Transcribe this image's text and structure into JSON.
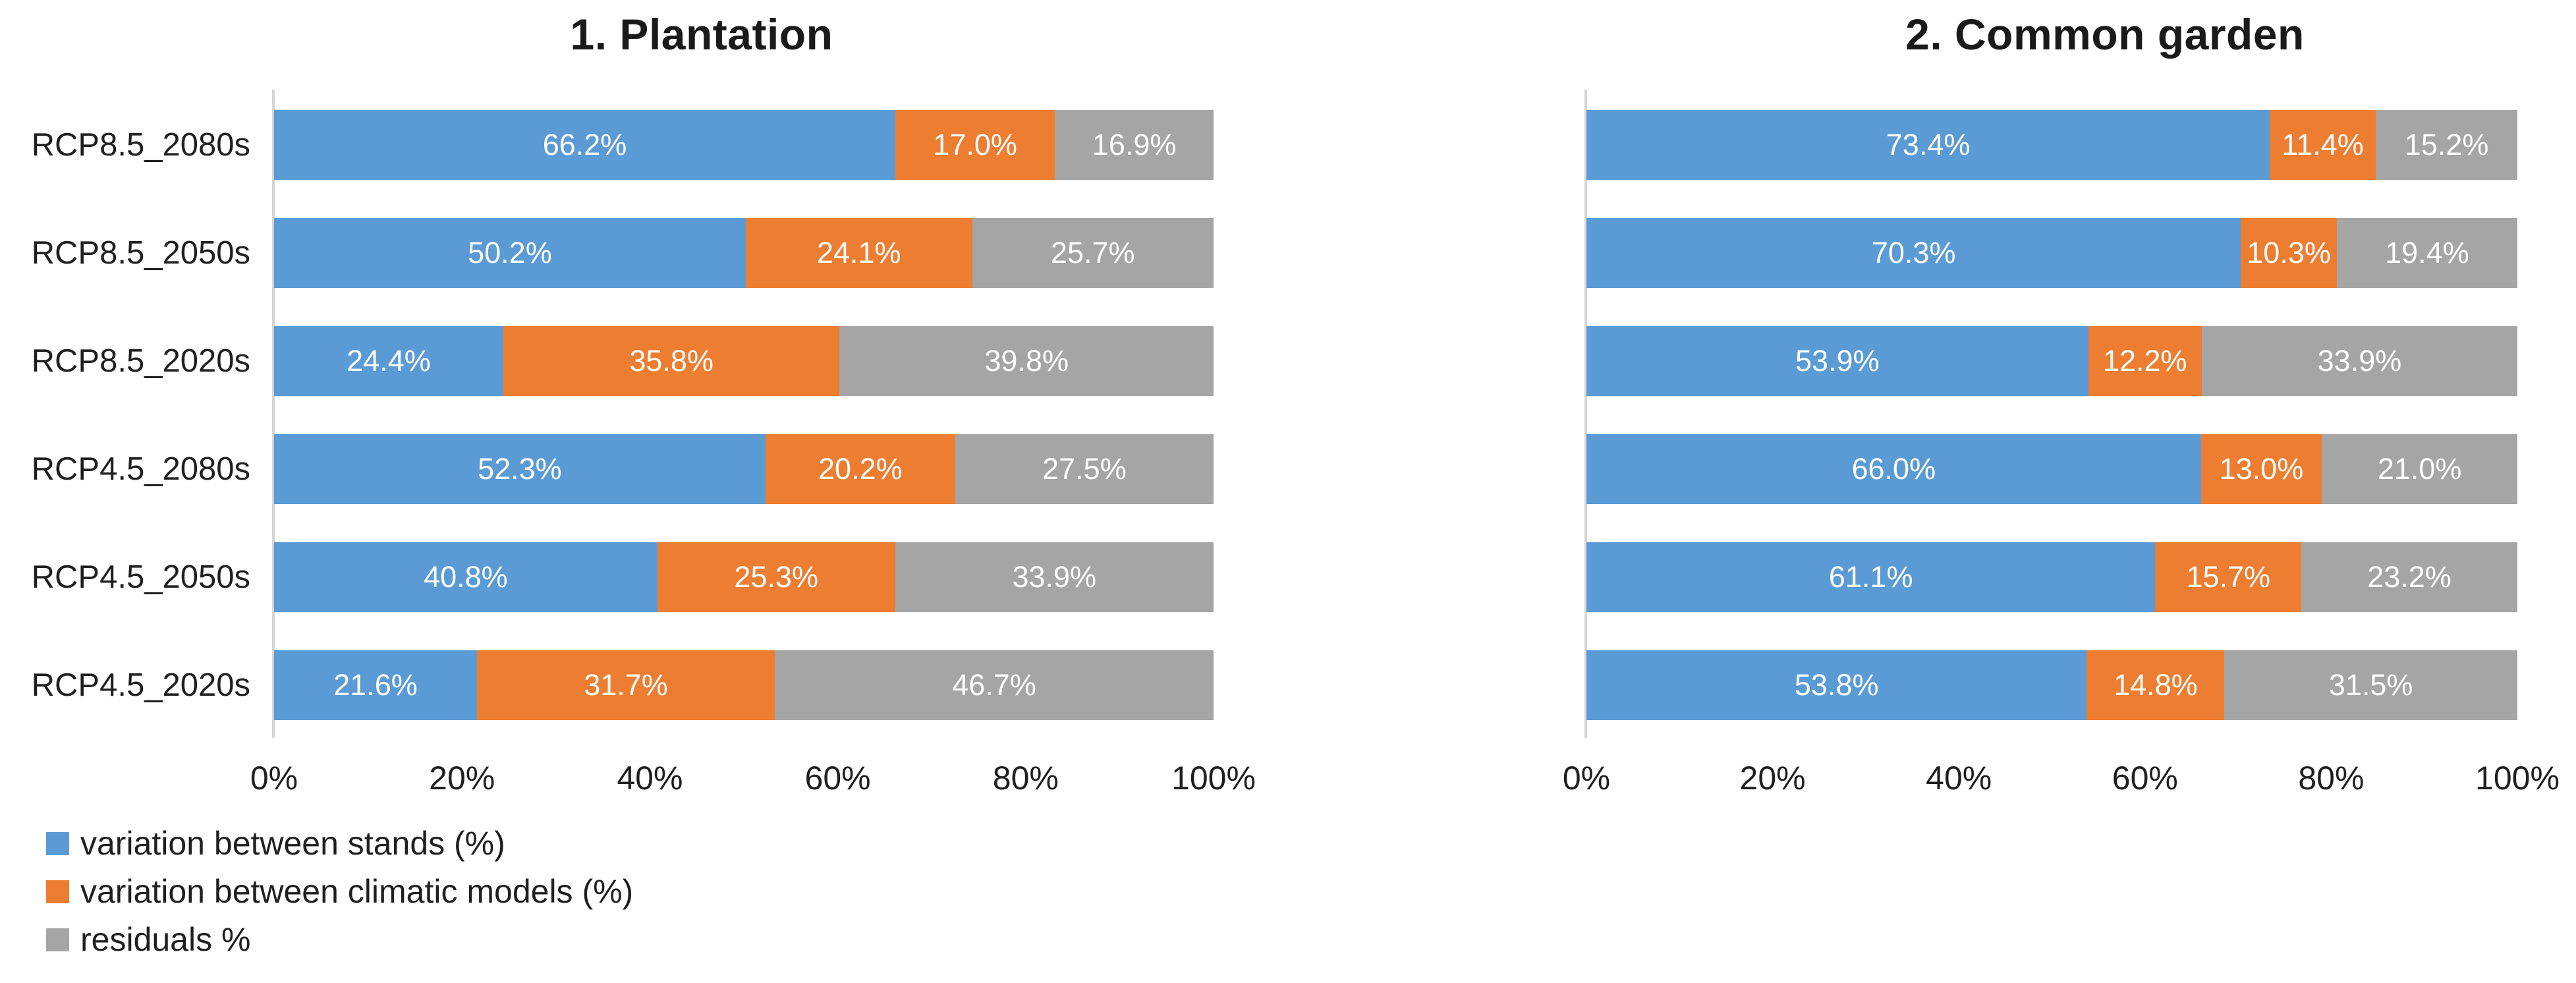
{
  "figure": {
    "legend": {
      "position": "bottom-left",
      "items": [
        {
          "label": "variation between stands (%)",
          "color": "#5B9BD5"
        },
        {
          "label": "variation between climatic models (%)",
          "color": "#ED7D31"
        },
        {
          "label": "residuals %",
          "color": "#A5A5A5"
        }
      ]
    },
    "colors": {
      "series_blue": "#5B9BD5",
      "series_orange": "#ED7D31",
      "series_gray": "#A5A5A5",
      "axis_line": "#D6D6D6",
      "text": "#1F1F1F",
      "bar_label": "#FFFFFF"
    }
  },
  "chart_data": {
    "type": "bar",
    "orientation": "horizontal",
    "stacked": true,
    "grid": false,
    "x_axis": {
      "range": [
        0,
        100
      ],
      "ticks": [
        "0%",
        "20%",
        "40%",
        "60%",
        "80%",
        "100%"
      ]
    },
    "charts": [
      {
        "title": "1. Plantation",
        "show_category_labels": true,
        "categories": [
          "RCP8.5_2080s",
          "RCP8.5_2050s",
          "RCP8.5_2020s",
          "RCP4.5_2080s",
          "RCP4.5_2050s",
          "RCP4.5_2020s"
        ],
        "series": [
          {
            "key": "stands",
            "name": "variation between stands (%)",
            "color": "#5B9BD5",
            "values": [
              66.2,
              50.2,
              24.4,
              52.3,
              40.8,
              21.6
            ]
          },
          {
            "key": "models",
            "name": "variation between climatic models (%)",
            "color": "#ED7D31",
            "values": [
              17.0,
              24.1,
              35.8,
              20.2,
              25.3,
              31.7
            ]
          },
          {
            "key": "residuals",
            "name": "residuals %",
            "color": "#A5A5A5",
            "values": [
              16.9,
              25.7,
              39.8,
              27.5,
              33.9,
              46.7
            ]
          }
        ]
      },
      {
        "title": "2. Common garden",
        "show_category_labels": false,
        "categories": [
          "RCP8.5_2080s",
          "RCP8.5_2050s",
          "RCP8.5_2020s",
          "RCP4.5_2080s",
          "RCP4.5_2050s",
          "RCP4.5_2020s"
        ],
        "series": [
          {
            "key": "stands",
            "name": "variation between stands (%)",
            "color": "#5B9BD5",
            "values": [
              73.4,
              70.3,
              53.9,
              66.0,
              61.1,
              53.8
            ]
          },
          {
            "key": "models",
            "name": "variation between climatic models (%)",
            "color": "#ED7D31",
            "values": [
              11.4,
              10.3,
              12.2,
              13.0,
              15.7,
              14.8
            ]
          },
          {
            "key": "residuals",
            "name": "residuals %",
            "color": "#A5A5A5",
            "values": [
              15.2,
              19.4,
              33.9,
              21.0,
              23.2,
              31.5
            ]
          }
        ]
      }
    ]
  }
}
